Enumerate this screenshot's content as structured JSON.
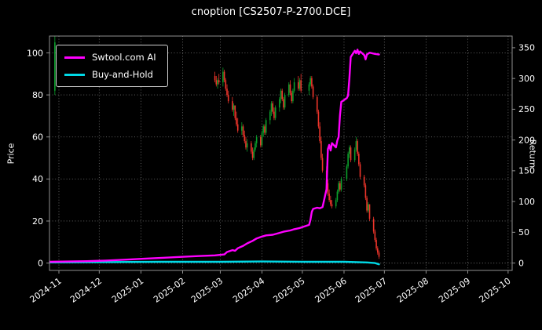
{
  "chart_data": {
    "type": "candlestick",
    "title": "cnoption [CS2507-P-2700.DCE]",
    "ylabel_left": "Price",
    "ylabel_right": "Return",
    "background": "#000000",
    "text_color": "#ffffff",
    "grid": true,
    "legend_position": "upper-left",
    "legend": [
      {
        "label": "Swtool.com AI",
        "color": "#ff00ff"
      },
      {
        "label": "Buy-and-Hold",
        "color": "#00d9e6"
      }
    ],
    "colors": {
      "up": "#0ca02c",
      "down": "#ee352b"
    },
    "x_ticks": [
      "2024-11",
      "2024-12",
      "2025-01",
      "2025-02",
      "2025-03",
      "2025-04",
      "2025-05",
      "2025-06",
      "2025-07",
      "2025-08",
      "2025-09",
      "2025-10"
    ],
    "x_domain": [
      "2024-10-25",
      "2025-10-04"
    ],
    "left_ticks": [
      0,
      20,
      40,
      60,
      80,
      100
    ],
    "right_ticks": [
      0,
      50,
      100,
      150,
      200,
      250,
      300,
      350
    ],
    "left_range": [
      -3.5,
      108
    ],
    "right_range": [
      -12,
      369
    ],
    "candles": [
      [
        "2024-10-29",
        82,
        108,
        80,
        105
      ],
      [
        "2025-02-25",
        89,
        91,
        86,
        87
      ],
      [
        "2025-02-26",
        87,
        89,
        84,
        85
      ],
      [
        "2025-02-27",
        85,
        88,
        83,
        87
      ],
      [
        "2025-02-28",
        87,
        90,
        85,
        86
      ],
      [
        "2025-03-03",
        86,
        93,
        84,
        91
      ],
      [
        "2025-03-04",
        91,
        92,
        86,
        87
      ],
      [
        "2025-03-05",
        87,
        88,
        82,
        83
      ],
      [
        "2025-03-06",
        83,
        85,
        79,
        80
      ],
      [
        "2025-03-07",
        80,
        82,
        76,
        77
      ],
      [
        "2025-03-10",
        77,
        79,
        72,
        73
      ],
      [
        "2025-03-11",
        73,
        76,
        70,
        75
      ],
      [
        "2025-03-12",
        75,
        75,
        68,
        69
      ],
      [
        "2025-03-13",
        69,
        72,
        65,
        66
      ],
      [
        "2025-03-14",
        66,
        69,
        62,
        63
      ],
      [
        "2025-03-17",
        63,
        67,
        61,
        65
      ],
      [
        "2025-03-18",
        65,
        66,
        60,
        61
      ],
      [
        "2025-03-19",
        61,
        63,
        57,
        58
      ],
      [
        "2025-03-20",
        58,
        60,
        54,
        55
      ],
      [
        "2025-03-21",
        55,
        59,
        53,
        57
      ],
      [
        "2025-03-24",
        57,
        58,
        52,
        53
      ],
      [
        "2025-03-25",
        53,
        55,
        49,
        50
      ],
      [
        "2025-03-26",
        50,
        55,
        49,
        54
      ],
      [
        "2025-03-27",
        54,
        58,
        53,
        57
      ],
      [
        "2025-03-28",
        57,
        61,
        55,
        60
      ],
      [
        "2025-03-31",
        60,
        61,
        55,
        56
      ],
      [
        "2025-04-01",
        56,
        63,
        55,
        62
      ],
      [
        "2025-04-02",
        62,
        66,
        60,
        65
      ],
      [
        "2025-04-03",
        65,
        66,
        61,
        62
      ],
      [
        "2025-04-04",
        62,
        69,
        61,
        68
      ],
      [
        "2025-04-07",
        68,
        73,
        66,
        72
      ],
      [
        "2025-04-08",
        72,
        77,
        70,
        76
      ],
      [
        "2025-04-09",
        76,
        77,
        71,
        72
      ],
      [
        "2025-04-10",
        72,
        74,
        68,
        69
      ],
      [
        "2025-04-11",
        69,
        75,
        68,
        74
      ],
      [
        "2025-04-14",
        74,
        79,
        72,
        78
      ],
      [
        "2025-04-15",
        78,
        83,
        76,
        82
      ],
      [
        "2025-04-16",
        82,
        83,
        77,
        78
      ],
      [
        "2025-04-17",
        78,
        79,
        73,
        74
      ],
      [
        "2025-04-18",
        74,
        81,
        73,
        80
      ],
      [
        "2025-04-21",
        80,
        86,
        79,
        85
      ],
      [
        "2025-04-22",
        85,
        87,
        80,
        81
      ],
      [
        "2025-04-23",
        81,
        82,
        76,
        77
      ],
      [
        "2025-04-24",
        77,
        83,
        76,
        82
      ],
      [
        "2025-04-25",
        82,
        88,
        81,
        86
      ],
      [
        "2025-04-28",
        86,
        89,
        82,
        83
      ],
      [
        "2025-04-29",
        83,
        88,
        82,
        87
      ],
      [
        "2025-04-30",
        87,
        90,
        81,
        82
      ],
      [
        "2025-05-06",
        82,
        86,
        80,
        85
      ],
      [
        "2025-05-07",
        85,
        89,
        84,
        88
      ],
      [
        "2025-05-08",
        88,
        89,
        83,
        84
      ],
      [
        "2025-05-09",
        84,
        85,
        78,
        79
      ],
      [
        "2025-05-12",
        79,
        80,
        71,
        72
      ],
      [
        "2025-05-13",
        72,
        73,
        64,
        65
      ],
      [
        "2025-05-14",
        65,
        67,
        57,
        58
      ],
      [
        "2025-05-15",
        58,
        60,
        49,
        50
      ],
      [
        "2025-05-16",
        50,
        52,
        43,
        44
      ],
      [
        "2025-05-19",
        44,
        46,
        37,
        38
      ],
      [
        "2025-05-20",
        38,
        40,
        32,
        33
      ],
      [
        "2025-05-21",
        33,
        35,
        29,
        30
      ],
      [
        "2025-05-22",
        30,
        32,
        27,
        28
      ],
      [
        "2025-05-23",
        28,
        30,
        26,
        27
      ],
      [
        "2025-05-26",
        27,
        31,
        26,
        30
      ],
      [
        "2025-05-27",
        30,
        35,
        29,
        34
      ],
      [
        "2025-05-28",
        34,
        39,
        33,
        38
      ],
      [
        "2025-05-29",
        38,
        39,
        34,
        35
      ],
      [
        "2025-05-30",
        35,
        41,
        34,
        40
      ],
      [
        "2025-06-03",
        40,
        47,
        39,
        46
      ],
      [
        "2025-06-04",
        46,
        53,
        45,
        52
      ],
      [
        "2025-06-05",
        52,
        56,
        50,
        55
      ],
      [
        "2025-06-06",
        55,
        56,
        48,
        49
      ],
      [
        "2025-06-09",
        49,
        55,
        48,
        54
      ],
      [
        "2025-06-10",
        54,
        60,
        53,
        58
      ],
      [
        "2025-06-11",
        58,
        59,
        51,
        52
      ],
      [
        "2025-06-12",
        52,
        53,
        46,
        47
      ],
      [
        "2025-06-13",
        47,
        48,
        40,
        41
      ],
      [
        "2025-06-16",
        41,
        42,
        36,
        37
      ],
      [
        "2025-06-17",
        37,
        38,
        30,
        31
      ],
      [
        "2025-06-18",
        31,
        32,
        24,
        25
      ],
      [
        "2025-06-19",
        25,
        29,
        24,
        28
      ],
      [
        "2025-06-20",
        28,
        28,
        20,
        21
      ],
      [
        "2025-06-23",
        21,
        22,
        14,
        15
      ],
      [
        "2025-06-24",
        15,
        16,
        10,
        11
      ],
      [
        "2025-06-25",
        11,
        12,
        6,
        7
      ],
      [
        "2025-06-26",
        7,
        8,
        4,
        5
      ],
      [
        "2025-06-27",
        5,
        6,
        2,
        3
      ]
    ],
    "ai_return": [
      [
        "2024-10-25",
        2
      ],
      [
        "2024-11-08",
        2.5
      ],
      [
        "2024-11-22",
        3
      ],
      [
        "2024-12-06",
        4
      ],
      [
        "2024-12-20",
        5.5
      ],
      [
        "2025-01-03",
        7
      ],
      [
        "2025-01-17",
        8.5
      ],
      [
        "2025-01-31",
        10
      ],
      [
        "2025-02-14",
        11.5
      ],
      [
        "2025-02-25",
        12.5
      ],
      [
        "2025-03-04",
        14
      ],
      [
        "2025-03-06",
        18
      ],
      [
        "2025-03-10",
        21
      ],
      [
        "2025-03-12",
        20
      ],
      [
        "2025-03-14",
        24
      ],
      [
        "2025-03-18",
        28
      ],
      [
        "2025-03-21",
        32
      ],
      [
        "2025-03-25",
        36
      ],
      [
        "2025-03-28",
        40
      ],
      [
        "2025-04-01",
        43
      ],
      [
        "2025-04-04",
        45
      ],
      [
        "2025-04-09",
        46
      ],
      [
        "2025-04-14",
        49
      ],
      [
        "2025-04-17",
        51
      ],
      [
        "2025-04-22",
        53
      ],
      [
        "2025-04-25",
        55
      ],
      [
        "2025-04-29",
        57
      ],
      [
        "2025-05-06",
        62
      ],
      [
        "2025-05-07",
        70
      ],
      [
        "2025-05-08",
        83
      ],
      [
        "2025-05-09",
        88
      ],
      [
        "2025-05-12",
        90
      ],
      [
        "2025-05-14",
        89
      ],
      [
        "2025-05-16",
        91
      ],
      [
        "2025-05-19",
        120
      ],
      [
        "2025-05-20",
        185
      ],
      [
        "2025-05-21",
        192
      ],
      [
        "2025-05-22",
        183
      ],
      [
        "2025-05-23",
        195
      ],
      [
        "2025-05-26",
        188
      ],
      [
        "2025-05-27",
        199
      ],
      [
        "2025-05-28",
        205
      ],
      [
        "2025-05-29",
        240
      ],
      [
        "2025-05-30",
        262
      ],
      [
        "2025-06-03",
        268
      ],
      [
        "2025-06-04",
        272
      ],
      [
        "2025-06-05",
        300
      ],
      [
        "2025-06-06",
        335
      ],
      [
        "2025-06-09",
        345
      ],
      [
        "2025-06-10",
        341
      ],
      [
        "2025-06-11",
        347
      ],
      [
        "2025-06-12",
        340
      ],
      [
        "2025-06-13",
        344
      ],
      [
        "2025-06-16",
        338
      ],
      [
        "2025-06-17",
        331
      ],
      [
        "2025-06-18",
        339
      ],
      [
        "2025-06-20",
        342
      ],
      [
        "2025-06-24",
        340
      ],
      [
        "2025-06-27",
        339
      ]
    ],
    "bh_return": [
      [
        "2024-10-25",
        1
      ],
      [
        "2024-12-01",
        1.5
      ],
      [
        "2025-01-15",
        2
      ],
      [
        "2025-03-01",
        2
      ],
      [
        "2025-04-01",
        2.5
      ],
      [
        "2025-05-01",
        2
      ],
      [
        "2025-06-01",
        2
      ],
      [
        "2025-06-18",
        1
      ],
      [
        "2025-06-24",
        0
      ],
      [
        "2025-06-27",
        -2
      ]
    ]
  }
}
